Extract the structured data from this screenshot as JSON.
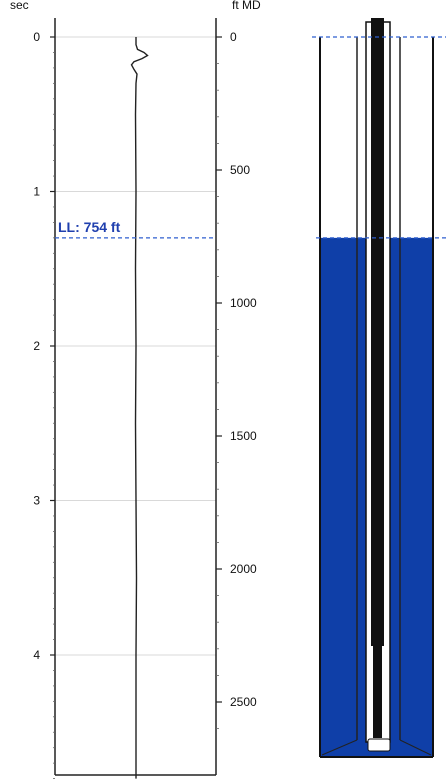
{
  "chart_data": {
    "type": "line",
    "title": "",
    "left_axis": {
      "label": "sec",
      "range": [
        0,
        4.8
      ],
      "ticks": [
        "0",
        "1",
        "2",
        "3",
        "4"
      ]
    },
    "right_axis": {
      "label": "ft MD",
      "range": [
        0,
        2680
      ],
      "ticks": [
        "0",
        "500",
        "1000",
        "1500",
        "2000",
        "2500"
      ]
    },
    "liquid_level": {
      "label": "LL: 754 ft",
      "depth_ft": 754,
      "time_sec": 1.3
    },
    "trace": {
      "name": "",
      "points": [
        [
          0.0,
          0.0
        ],
        [
          0.05,
          0.0
        ],
        [
          0.08,
          0.3
        ],
        [
          0.1,
          1.6
        ],
        [
          0.12,
          2.3
        ],
        [
          0.14,
          1.2
        ],
        [
          0.16,
          -0.4
        ],
        [
          0.18,
          -0.9
        ],
        [
          0.21,
          -0.4
        ],
        [
          0.24,
          0.2
        ],
        [
          0.3,
          0.0
        ],
        [
          0.5,
          -0.1
        ],
        [
          1.0,
          0.0
        ],
        [
          1.5,
          -0.1
        ],
        [
          2.0,
          0.0
        ],
        [
          2.5,
          -0.1
        ],
        [
          3.0,
          0.0
        ],
        [
          3.5,
          0.1
        ],
        [
          4.0,
          0.0
        ],
        [
          4.8,
          0.0
        ]
      ]
    },
    "grid": true,
    "colors": {
      "fluid": "#0f3fa8",
      "level_line": "#2f5fcf",
      "trace": "#222222",
      "tubing": "#111111"
    }
  }
}
